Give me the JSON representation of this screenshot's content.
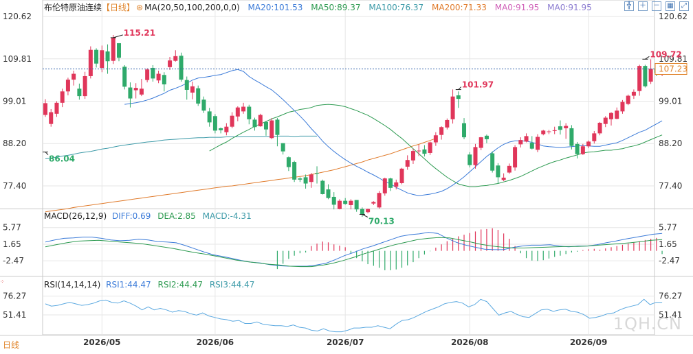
{
  "title": "布伦特原油连续",
  "period_tag": "【日线】",
  "ma_header": {
    "label": "MA(20,50,100,200,0,0)",
    "items": [
      {
        "text": "MA20:101.53",
        "color": "#3a7ad8"
      },
      {
        "text": "MA50:89.37",
        "color": "#2c9a50"
      },
      {
        "text": "MA100:76.37",
        "color": "#3c9aa8"
      },
      {
        "text": "MA200:71.33",
        "color": "#e07a2a"
      },
      {
        "text": "MA0:91.95",
        "color": "#d060b8"
      },
      {
        "text": "MA0:91.95",
        "color": "#8a7ad0"
      }
    ]
  },
  "macd_header": {
    "label": "MACD(26,12,9)",
    "items": [
      {
        "text": "DIFF:0.69",
        "color": "#3a7ad8"
      },
      {
        "text": "DEA:2.85",
        "color": "#2c9a50"
      },
      {
        "text": "MACD:-4.31",
        "color": "#3c9aa8"
      }
    ]
  },
  "rsi_header": {
    "label": "RSI(14,14,14)",
    "items": [
      {
        "text": "RSI1:44.47",
        "color": "#3a7ad8"
      },
      {
        "text": "RSI2:44.47",
        "color": "#2c9a50"
      },
      {
        "text": "RSI3:44.47",
        "color": "#3c9aa8"
      }
    ]
  },
  "bottom_period": "日线",
  "watermark": "1QH.CN",
  "colors": {
    "up": "#e0365a",
    "down": "#2faa6a",
    "grid": "#e6e6e6",
    "ref": "#2c5fa8"
  },
  "chart_data": {
    "type": "candlestick",
    "price_ticks": [
      "120.62",
      "109.81",
      "99.01",
      "88.20",
      "77.40"
    ],
    "macd_ticks": [
      "5.77",
      "1.65",
      "-2.47"
    ],
    "rsi_ticks": [
      "76.27",
      "51.41"
    ],
    "x_labels": [
      "2026/05",
      "2026/06",
      "2026/07",
      "2026/08",
      "2026/09"
    ],
    "last_price_label": "107.23",
    "last_price": 107.23,
    "annotations": [
      {
        "text": "115.21",
        "value": 115.21,
        "kind": "high"
      },
      {
        "text": "86.04",
        "value": 86.04,
        "kind": "low"
      },
      {
        "text": "70.13",
        "value": 70.13,
        "kind": "low"
      },
      {
        "text": "101.97",
        "value": 101.97,
        "kind": "high"
      },
      {
        "text": "109.72",
        "value": 109.72,
        "kind": "high"
      }
    ],
    "candles": [
      [
        95.5,
        98.5,
        95.0,
        99.5
      ],
      [
        93.2,
        96.2,
        92.5,
        97.0
      ],
      [
        95.8,
        98.6,
        95.0,
        99.0
      ],
      [
        98.6,
        101.5,
        97.5,
        102.2
      ],
      [
        101.5,
        104.5,
        100.5,
        105.0
      ],
      [
        104.5,
        106.0,
        103.0,
        106.8
      ],
      [
        102.2,
        100.3,
        99.4,
        103.5
      ],
      [
        100.3,
        105.4,
        99.6,
        106.5
      ],
      [
        105.4,
        112.1,
        104.8,
        113.0
      ],
      [
        112.1,
        108.6,
        107.6,
        112.5
      ],
      [
        107.5,
        112.0,
        106.4,
        113.2
      ],
      [
        111.7,
        109.2,
        106.0,
        113.5
      ],
      [
        109.3,
        115.2,
        108.5,
        115.9
      ],
      [
        113.8,
        110.1,
        109.2,
        113.8
      ],
      [
        107.8,
        102.7,
        102.0,
        108.2
      ],
      [
        102.5,
        99.7,
        97.4,
        103.8
      ],
      [
        101.8,
        102.4,
        99.7,
        103.6
      ],
      [
        100.7,
        102.2,
        100.3,
        104.7
      ],
      [
        104.4,
        107.1,
        103.8,
        107.4
      ],
      [
        107.5,
        104.8,
        104.0,
        108.2
      ],
      [
        104.3,
        106.0,
        103.6,
        106.8
      ],
      [
        105.7,
        103.3,
        101.5,
        106.4
      ],
      [
        107.7,
        109.4,
        107.0,
        110.3
      ],
      [
        109.3,
        110.5,
        109.1,
        112.0
      ],
      [
        110.6,
        104.5,
        104.0,
        111.4
      ],
      [
        104.4,
        101.9,
        99.4,
        105.3
      ],
      [
        101.2,
        102.8,
        99.5,
        104.0
      ],
      [
        102.3,
        98.4,
        97.8,
        103.0
      ],
      [
        99.4,
        96.6,
        96.0,
        100.2
      ],
      [
        96.4,
        93.6,
        92.5,
        97.3
      ],
      [
        95.2,
        91.5,
        90.8,
        95.7
      ],
      [
        92.1,
        91.6,
        90.8,
        92.3
      ],
      [
        91.1,
        92.5,
        90.3,
        93.4
      ],
      [
        92.5,
        95.3,
        92.1,
        96.2
      ],
      [
        95.1,
        97.4,
        93.9,
        97.7
      ],
      [
        96.4,
        97.6,
        95.8,
        98.6
      ],
      [
        97.6,
        94.4,
        93.1,
        98.1
      ],
      [
        94.3,
        92.4,
        91.5,
        94.8
      ],
      [
        92.6,
        95.5,
        92.5,
        95.8
      ],
      [
        93.7,
        91.8,
        90.2,
        94.0
      ],
      [
        89.6,
        94.1,
        89.3,
        94.7
      ],
      [
        94.3,
        90.4,
        87.5,
        94.7
      ],
      [
        88.3,
        86.2,
        85.4,
        88.3
      ],
      [
        84.7,
        82.2,
        81.2,
        84.9
      ],
      [
        83.5,
        79.0,
        78.4,
        83.8
      ],
      [
        79.3,
        79.0,
        78.4,
        79.6
      ],
      [
        79.6,
        78.0,
        76.7,
        80.3
      ],
      [
        78.4,
        80.3,
        76.9,
        80.7
      ],
      [
        80.7,
        80.6,
        78.0,
        82.4
      ],
      [
        78.7,
        75.3,
        75.2,
        79.0
      ],
      [
        76.5,
        74.3,
        74.0,
        77.8
      ],
      [
        74.6,
        72.6,
        71.4,
        75.8
      ],
      [
        71.5,
        73.6,
        71.4,
        74.0
      ],
      [
        73.6,
        72.8,
        72.6,
        74.3
      ],
      [
        72.5,
        73.6,
        71.4,
        74.0
      ],
      [
        73.8,
        71.4,
        70.8,
        73.8
      ],
      [
        71.5,
        70.1,
        69.5,
        71.9
      ],
      [
        70.7,
        71.5,
        70.4,
        71.6
      ],
      [
        72.9,
        73.3,
        72.5,
        73.5
      ],
      [
        71.9,
        75.6,
        71.6,
        76.1
      ],
      [
        75.5,
        79.3,
        74.9,
        79.5
      ],
      [
        79.3,
        76.9,
        76.1,
        79.5
      ],
      [
        77.2,
        78.3,
        76.5,
        79.0
      ],
      [
        78.1,
        81.8,
        77.8,
        82.0
      ],
      [
        82.3,
        84.0,
        81.5,
        85.2
      ],
      [
        83.9,
        86.3,
        83.0,
        86.9
      ],
      [
        86.3,
        86.4,
        85.0,
        87.9
      ],
      [
        86.7,
        85.6,
        84.9,
        87.8
      ],
      [
        85.8,
        88.5,
        85.3,
        88.7
      ],
      [
        88.5,
        90.3,
        87.6,
        91.1
      ],
      [
        90.4,
        92.4,
        89.2,
        92.6
      ],
      [
        92.3,
        94.2,
        91.8,
        94.6
      ],
      [
        94.4,
        100.2,
        93.3,
        102.0
      ],
      [
        100.5,
        99.6,
        97.3,
        101.5
      ],
      [
        93.4,
        89.8,
        89.3,
        94.7
      ],
      [
        85.4,
        82.7,
        82.1,
        86.0
      ],
      [
        82.7,
        87.3,
        81.8,
        88.1
      ],
      [
        87.1,
        89.8,
        86.5,
        89.9
      ],
      [
        90.2,
        89.3,
        88.3,
        90.5
      ],
      [
        85.7,
        81.3,
        80.8,
        86.2
      ],
      [
        82.6,
        79.6,
        78.0,
        83.2
      ],
      [
        78.9,
        79.5,
        78.6,
        80.6
      ],
      [
        80.8,
        82.5,
        80.5,
        83.1
      ],
      [
        82.1,
        87.3,
        81.3,
        87.8
      ],
      [
        88.0,
        89.1,
        87.2,
        89.8
      ],
      [
        88.7,
        90.1,
        88.5,
        90.8
      ],
      [
        88.4,
        86.9,
        86.7,
        90.1
      ],
      [
        86.6,
        89.9,
        86.0,
        90.6
      ],
      [
        90.6,
        91.5,
        90.3,
        91.7
      ],
      [
        91.2,
        91.3,
        90.6,
        91.7
      ],
      [
        91.4,
        91.6,
        90.6,
        92.5
      ],
      [
        92.6,
        91.7,
        90.5,
        94.1
      ],
      [
        92.1,
        92.7,
        89.4,
        93.4
      ],
      [
        92.1,
        87.6,
        86.7,
        92.9
      ],
      [
        88.1,
        85.5,
        84.4,
        88.6
      ],
      [
        85.5,
        87.5,
        85.3,
        88.1
      ],
      [
        87.5,
        88.7,
        87.0,
        89.0
      ],
      [
        88.8,
        90.8,
        88.2,
        91.4
      ],
      [
        90.8,
        93.5,
        90.3,
        93.7
      ],
      [
        93.2,
        94.8,
        92.4,
        95.2
      ],
      [
        94.4,
        96.0,
        92.8,
        96.2
      ],
      [
        94.5,
        96.6,
        94.4,
        97.4
      ],
      [
        96.4,
        98.8,
        95.8,
        99.3
      ],
      [
        98.3,
        100.4,
        98.0,
        100.7
      ],
      [
        100.4,
        101.4,
        99.6,
        102.0
      ],
      [
        101.6,
        108.0,
        100.4,
        108.3
      ],
      [
        108.0,
        102.8,
        102.5,
        108.3
      ],
      [
        104.0,
        107.3,
        103.4,
        109.7
      ],
      [
        107.3,
        106.2,
        105.4,
        107.6
      ],
      [
        106.2,
        107.2,
        105.4,
        107.7
      ]
    ],
    "ma20": [
      98.2,
      98.4,
      98.6,
      98.9,
      99.3,
      99.8,
      100.4,
      101.0,
      101.8,
      102.3,
      102.9,
      103.6,
      104.4,
      104.9,
      105.1,
      105.3,
      105.6,
      105.8,
      106.3,
      106.8,
      107.1,
      106.6,
      105.3,
      104.4,
      103.6,
      102.7,
      101.9,
      100.7,
      99.4,
      98.0,
      96.6,
      95.2,
      93.7,
      92.0,
      90.5,
      88.8,
      87.4,
      86.2,
      85.1,
      84.1,
      83.2,
      82.4,
      81.7,
      80.9,
      80.2,
      79.4,
      78.5,
      77.9,
      77.0,
      76.3,
      75.6,
      75.2,
      74.9,
      75.1,
      75.3,
      75.6,
      76.0,
      76.7,
      77.6,
      78.6,
      79.7,
      81.0,
      82.3,
      83.6,
      84.9,
      86.0,
      87.1,
      88.0,
      88.6,
      88.9,
      88.9,
      88.8,
      88.5,
      88.1,
      87.6,
      87.4,
      87.3,
      87.2,
      87.3,
      87.4,
      87.6,
      87.7,
      87.6,
      87.5,
      87.5,
      87.8,
      88.1,
      88.4,
      89.0,
      89.7,
      90.4,
      91.1,
      91.6,
      92.4,
      93.2,
      94.0
    ],
    "ma50": [
      86.3,
      87.1,
      87.9,
      88.6,
      89.5,
      90.3,
      91.1,
      91.8,
      92.6,
      93.2,
      93.8,
      94.5,
      95.0,
      95.6,
      96.2,
      96.5,
      96.9,
      97.1,
      97.4,
      97.9,
      98.1,
      98.2,
      98.1,
      97.9,
      97.6,
      97.1,
      96.6,
      96.0,
      95.4,
      94.6,
      93.7,
      92.8,
      91.8,
      90.6,
      89.5,
      88.2,
      86.9,
      85.6,
      84.3,
      83.0,
      81.8,
      80.7,
      79.6,
      78.7,
      77.9,
      77.5,
      77.2,
      77.2,
      77.4,
      77.5,
      77.8,
      78.0,
      78.4,
      78.8,
      79.3,
      79.8,
      80.5,
      81.2,
      81.9,
      82.5,
      83.1,
      83.6,
      84.0,
      84.5,
      84.9,
      85.3,
      85.8,
      86.0,
      86.1,
      86.3,
      86.5,
      86.5,
      86.7,
      86.9,
      87.3,
      87.6,
      88.0,
      88.6,
      89.2,
      89.8,
      90.4
    ],
    "ma100": [
      84.3,
      84.5,
      84.7,
      85.0,
      85.2,
      85.5,
      85.8,
      86.0,
      86.2,
      86.5,
      86.8,
      87.0,
      87.3,
      87.6,
      87.8,
      88.0,
      88.2,
      88.4,
      88.6,
      88.7,
      88.9,
      89.1,
      89.2,
      89.3,
      89.4,
      89.5,
      89.6,
      89.7,
      89.7,
      89.8,
      89.8,
      89.8,
      89.9,
      89.9,
      89.9,
      90.0,
      90.0,
      90.0,
      90.0,
      90.0,
      90.0,
      90.1,
      90.1,
      90.1,
      90.0,
      90.1,
      90.1,
      90.1,
      90.1
    ],
    "ma200": [
      70.8,
      71.0,
      71.2,
      71.4,
      71.6,
      71.9,
      72.1,
      72.3,
      72.5,
      72.7,
      72.9,
      73.1,
      73.3,
      73.5,
      73.7,
      73.9,
      74.1,
      74.3,
      74.5,
      74.7,
      74.9,
      75.1,
      75.3,
      75.5,
      75.7,
      75.9,
      76.1,
      76.3,
      76.5,
      76.7,
      76.9,
      77.1,
      77.3,
      77.4,
      77.6,
      77.8,
      78.0,
      78.2,
      78.4,
      78.6,
      78.8,
      79.0,
      79.2,
      79.4,
      79.6,
      79.8,
      80.0,
      80.3,
      80.6,
      80.9,
      81.2,
      81.5,
      81.9,
      82.3,
      82.7,
      83.1,
      83.5,
      84.0,
      84.4,
      84.8,
      85.2,
      85.6,
      86.1,
      86.6,
      87.1,
      87.6,
      88.0,
      88.5,
      89.0,
      89.5
    ],
    "macd_diff": [
      2.2,
      2.7,
      3.1,
      3.2,
      3.4,
      3.4,
      3.1,
      2.7,
      2.5,
      2.6,
      2.9,
      2.7,
      2.3,
      2.2,
      2.0,
      1.3,
      0.5,
      -0.3,
      -1.0,
      -1.4,
      -1.9,
      -2.4,
      -2.8,
      -3.0,
      -3.4,
      -3.7,
      -3.8,
      -3.8,
      -3.8,
      -3.5,
      -3.1,
      -2.2,
      -1.2,
      -0.4,
      0.5,
      1.2,
      2.0,
      2.8,
      3.6,
      4.0,
      4.2,
      4.6,
      4.3,
      3.1,
      2.1,
      1.4,
      0.9,
      0.4,
      0.3,
      0.3,
      0.8,
      1.2,
      1.4,
      1.4,
      1.5,
      1.2,
      1.0,
      1.2,
      1.2,
      1.5,
      2.0,
      2.4,
      2.9,
      3.3,
      3.7,
      4.1,
      4.3
    ],
    "macd_dea": [
      1.0,
      1.5,
      2.0,
      2.4,
      2.5,
      2.6,
      2.4,
      2.2,
      2.0,
      1.8,
      1.4,
      1.0,
      0.6,
      0.1,
      -0.4,
      -0.8,
      -1.3,
      -1.8,
      -2.3,
      -2.7,
      -3.0,
      -3.3,
      -3.5,
      -3.8,
      -3.9,
      -3.9,
      -3.6,
      -3.1,
      -2.4,
      -1.6,
      -0.7,
      0.1,
      0.9,
      1.6,
      2.2,
      2.8,
      3.1,
      3.3,
      3.2,
      2.7,
      2.2,
      1.6,
      1.2,
      0.9,
      0.7,
      0.7,
      0.8,
      0.9,
      1.0,
      1.1,
      1.1,
      1.2,
      1.4,
      1.6,
      1.8,
      2.0,
      2.3,
      2.6,
      2.8
    ],
    "macd_hist": [
      -4.5,
      -3.2,
      -2.0,
      -1.2,
      -0.6,
      -0.4,
      1.2,
      1.8,
      2.3,
      2.1,
      1.6,
      1.3,
      0.9,
      -0.6,
      -1.8,
      -2.6,
      -3.3,
      -3.7,
      -4.2,
      -4.8,
      -4.8,
      -4.6,
      -4.2,
      -3.6,
      -2.8,
      -1.8,
      -0.9,
      -0.1,
      0.8,
      1.6,
      2.4,
      3.0,
      3.6,
      4.0,
      4.4,
      4.8,
      5.3,
      5.4,
      5.6,
      5.2,
      4.3,
      3.0,
      1.2,
      -0.6,
      -1.8,
      -2.4,
      -2.5,
      -2.3,
      -1.9,
      -1.5,
      -1.2,
      -0.8,
      -0.4,
      -0.2,
      0.2,
      0.4,
      0.5,
      0.3,
      0.6,
      0.9,
      1.2,
      1.5,
      1.8,
      2.1,
      2.4,
      2.7,
      3.0,
      3.2,
      -0.8
    ],
    "rsi": [
      66,
      63,
      64,
      66,
      68,
      66,
      64,
      65,
      67,
      70,
      71,
      68,
      67,
      70,
      67,
      63,
      58,
      62,
      58,
      60,
      58,
      55,
      57,
      56,
      53,
      51,
      54,
      50,
      48,
      46,
      45,
      43,
      44,
      40,
      40,
      42,
      39,
      38,
      37,
      37,
      36,
      38,
      35,
      34,
      31,
      30,
      33,
      30,
      29,
      29,
      31,
      34,
      34,
      35,
      35,
      37,
      35,
      33,
      39,
      44,
      45,
      48,
      52,
      56,
      59,
      62,
      66,
      68,
      69,
      67,
      62,
      65,
      72,
      69,
      60,
      51,
      54,
      56,
      52,
      49,
      48,
      53,
      58,
      59,
      56,
      58,
      59,
      56,
      55,
      52,
      47,
      48,
      50,
      53,
      54,
      58,
      61,
      63,
      65,
      72,
      65,
      68,
      68
    ],
    "rsi_range": [
      25,
      85
    ]
  }
}
